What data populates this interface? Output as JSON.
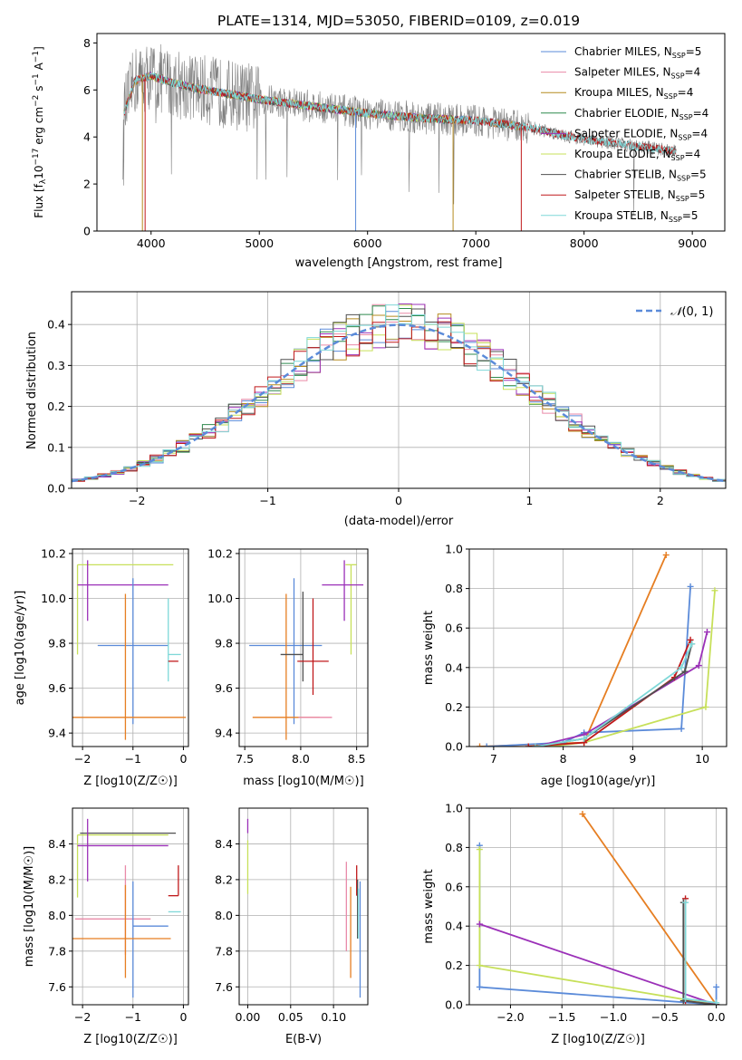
{
  "colors": {
    "Chabrier MILES": "#5b8bd9",
    "Salpeter MILES": "#e98aa8",
    "Kroupa MILES": "#b58b1f",
    "Chabrier ELODIE": "#2f8a4d",
    "Salpeter ELODIE": "#9b30b8",
    "Kroupa ELODIE": "#c7e05a",
    "Chabrier STELIB": "#505050",
    "Salpeter STELIB": "#c0191b",
    "Kroupa STELIB": "#7fd8d8",
    "extra_orange": "#e67e22",
    "observed": "#7f7f7f"
  },
  "chart_data": [
    {
      "id": "spectrum",
      "type": "line",
      "title": "PLATE=1314, MJD=53050, FIBERID=0109, z=0.019",
      "xlabel": "wavelength [Angstrom, rest frame]",
      "ylabel": "Flux [fλ10⁻¹⁷ erg cm⁻² s⁻¹ A⁻¹]",
      "xlim": [
        3500,
        9300
      ],
      "ylim": [
        0,
        8.4
      ],
      "xticks": [
        4000,
        5000,
        6000,
        7000,
        8000,
        9000
      ],
      "yticks": [
        0,
        2,
        4,
        6,
        8
      ],
      "legend": [
        {
          "name": "Chabrier MILES",
          "base": "Chabrier MILES, N",
          "sub": "SSP",
          "val": "=5"
        },
        {
          "name": "Salpeter MILES",
          "base": "Salpeter MILES, N",
          "sub": "SSP",
          "val": "=4"
        },
        {
          "name": "Kroupa MILES",
          "base": "Kroupa MILES, N",
          "sub": "SSP",
          "val": "=4"
        },
        {
          "name": "Chabrier ELODIE",
          "base": "Chabrier ELODIE, N",
          "sub": "SSP",
          "val": "=4"
        },
        {
          "name": "Salpeter ELODIE",
          "base": "Salpeter ELODIE, N",
          "sub": "SSP",
          "val": "=4"
        },
        {
          "name": "Kroupa ELODIE",
          "base": "Kroupa ELODIE, N",
          "sub": "SSP",
          "val": "=4"
        },
        {
          "name": "Chabrier STELIB",
          "base": "Chabrier STELIB, N",
          "sub": "SSP",
          "val": "=5"
        },
        {
          "name": "Salpeter STELIB",
          "base": "Salpeter STELIB, N",
          "sub": "SSP",
          "val": "=5"
        },
        {
          "name": "Kroupa STELIB",
          "base": "Kroupa STELIB, N",
          "sub": "SSP",
          "val": "=5"
        }
      ],
      "continuum": [
        [
          3750,
          5.0
        ],
        [
          3850,
          6.4
        ],
        [
          4000,
          6.6
        ],
        [
          4200,
          6.3
        ],
        [
          4500,
          6.0
        ],
        [
          5000,
          5.6
        ],
        [
          5500,
          5.3
        ],
        [
          6000,
          5.0
        ],
        [
          6500,
          4.8
        ],
        [
          7000,
          4.7
        ],
        [
          7500,
          4.4
        ],
        [
          8000,
          3.9
        ],
        [
          8500,
          3.6
        ],
        [
          8850,
          3.4
        ]
      ],
      "model_drops": [
        [
          3920,
          "#b58b1f"
        ],
        [
          3945,
          "#c0191b"
        ],
        [
          5890,
          "#5b8bd9"
        ],
        [
          6790,
          "#b58b1f"
        ],
        [
          7420,
          "#c0191b"
        ]
      ]
    },
    {
      "id": "residuals",
      "type": "bar",
      "xlabel": "(data-model)/error",
      "ylabel": "Normed distribution",
      "xlim": [
        -2.5,
        2.5
      ],
      "ylim": [
        0,
        0.48
      ],
      "xticks": [
        -2,
        -1,
        0,
        1,
        2
      ],
      "yticks": [
        0.0,
        0.1,
        0.2,
        0.3,
        0.4
      ],
      "legend": "N(0,1)",
      "bin_width": 0.1
    },
    {
      "id": "age_vs_Z",
      "type": "scatter",
      "xlabel": "Z [log10(Z/Z☉)]",
      "ylabel": "age  [log10(age/yr)]",
      "xlim": [
        -2.2,
        0.1
      ],
      "ylim": [
        9.34,
        10.22
      ],
      "xticks": [
        -2,
        -1,
        0
      ],
      "yticks": [
        9.4,
        9.6,
        9.8,
        10.0,
        10.2
      ],
      "points": [
        {
          "color": "#c7e05a",
          "x": -2.1,
          "y": 10.15,
          "xerr": [
            0.0,
            1.9
          ],
          "yerr": [
            0.4,
            0.0
          ]
        },
        {
          "color": "#9b30b8",
          "x": -1.9,
          "y": 10.06,
          "xerr": [
            0.2,
            1.6
          ],
          "yerr": [
            0.16,
            0.11
          ]
        },
        {
          "color": "#5b8bd9",
          "x": -1.0,
          "y": 9.79,
          "xerr": [
            0.7,
            0.7
          ],
          "yerr": [
            0.35,
            0.3
          ]
        },
        {
          "color": "#e67e22",
          "x": -1.15,
          "y": 9.47,
          "xerr": [
            1.1,
            1.2
          ],
          "yerr": [
            0.1,
            0.55
          ]
        },
        {
          "color": "#7fd8d8",
          "x": -0.3,
          "y": 9.75,
          "xerr": [
            0.0,
            0.25
          ],
          "yerr": [
            0.12,
            0.25
          ]
        },
        {
          "color": "#c0191b",
          "x": -0.1,
          "y": 9.72,
          "xerr": [
            0.2,
            0.0
          ],
          "yerr": [
            0.0,
            0.0
          ]
        }
      ]
    },
    {
      "id": "age_vs_mass",
      "type": "scatter",
      "xlabel": "mass [log10(M/M☉)]",
      "ylabel": "",
      "xlim": [
        7.45,
        8.6
      ],
      "ylim": [
        9.34,
        10.22
      ],
      "xticks": [
        7.5,
        8.0,
        8.5
      ],
      "yticks": [
        9.4,
        9.6,
        9.8,
        10.0,
        10.2
      ],
      "points": [
        {
          "color": "#c7e05a",
          "x": 8.45,
          "y": 10.15,
          "xerr": [
            0.05,
            0.05
          ],
          "yerr": [
            0.4,
            0.0
          ]
        },
        {
          "color": "#9b30b8",
          "x": 8.39,
          "y": 10.06,
          "xerr": [
            0.2,
            0.17
          ],
          "yerr": [
            0.16,
            0.11
          ]
        },
        {
          "color": "#5b8bd9",
          "x": 7.94,
          "y": 9.79,
          "xerr": [
            0.4,
            0.25
          ],
          "yerr": [
            0.35,
            0.3
          ]
        },
        {
          "color": "#e67e22",
          "x": 7.87,
          "y": 9.47,
          "xerr": [
            0.3,
            0.3
          ],
          "yerr": [
            0.1,
            0.55
          ]
        },
        {
          "color": "#e98aa8",
          "x": 7.98,
          "y": 9.47,
          "xerr": [
            0.0,
            0.3
          ],
          "yerr": [
            0.0,
            0.0
          ]
        },
        {
          "color": "#505050",
          "x": 8.02,
          "y": 9.75,
          "xerr": [
            0.2,
            0.0
          ],
          "yerr": [
            0.12,
            0.28
          ]
        },
        {
          "color": "#c0191b",
          "x": 8.11,
          "y": 9.72,
          "xerr": [
            0.14,
            0.14
          ],
          "yerr": [
            0.15,
            0.28
          ]
        }
      ]
    },
    {
      "id": "mass_weight_vs_age",
      "type": "line",
      "xlabel": "age  [log10(age/yr)]",
      "ylabel": "mass weight",
      "xlim": [
        6.65,
        10.35
      ],
      "ylim": [
        0,
        1.0
      ],
      "xticks": [
        7,
        8,
        9,
        10
      ],
      "yticks": [
        0.0,
        0.2,
        0.4,
        0.6,
        0.8,
        1.0
      ],
      "series": [
        {
          "color": "#e67e22",
          "points": [
            [
              6.8,
              0.0
            ],
            [
              8.3,
              0.02
            ],
            [
              9.48,
              0.97
            ]
          ]
        },
        {
          "color": "#5b8bd9",
          "points": [
            [
              6.9,
              0.0
            ],
            [
              8.0,
              0.02
            ],
            [
              8.3,
              0.07
            ],
            [
              9.7,
              0.09
            ],
            [
              9.83,
              0.81
            ]
          ]
        },
        {
          "color": "#c7e05a",
          "points": [
            [
              7.8,
              0.0
            ],
            [
              8.3,
              0.02
            ],
            [
              10.05,
              0.2
            ],
            [
              10.18,
              0.79
            ]
          ]
        },
        {
          "color": "#9b30b8",
          "points": [
            [
              7.6,
              0.0
            ],
            [
              8.3,
              0.06
            ],
            [
              9.95,
              0.41
            ],
            [
              10.07,
              0.58
            ]
          ]
        },
        {
          "color": "#c0191b",
          "points": [
            [
              7.5,
              0.0
            ],
            [
              8.3,
              0.02
            ],
            [
              9.6,
              0.35
            ],
            [
              9.83,
              0.54
            ]
          ]
        },
        {
          "color": "#505050",
          "points": [
            [
              7.6,
              0.0
            ],
            [
              8.3,
              0.04
            ],
            [
              9.75,
              0.38
            ],
            [
              9.85,
              0.52
            ]
          ]
        },
        {
          "color": "#7fd8d8",
          "points": [
            [
              7.6,
              0.0
            ],
            [
              8.3,
              0.04
            ],
            [
              9.7,
              0.4
            ],
            [
              9.85,
              0.52
            ]
          ]
        }
      ]
    },
    {
      "id": "mass_vs_Z",
      "type": "scatter",
      "xlabel": "Z [log10(Z/Z☉)]",
      "ylabel": "mass [log10(M/M☉)]",
      "xlim": [
        -2.2,
        0.1
      ],
      "ylim": [
        7.5,
        8.6
      ],
      "xticks": [
        -2,
        -1,
        0
      ],
      "yticks": [
        7.6,
        7.8,
        8.0,
        8.2,
        8.4
      ],
      "points": [
        {
          "color": "#505050",
          "x": -2.05,
          "y": 8.46,
          "xerr": [
            0.0,
            1.9
          ],
          "yerr": [
            0.0,
            0.0
          ]
        },
        {
          "color": "#c7e05a",
          "x": -2.1,
          "y": 8.45,
          "xerr": [
            0.0,
            1.8
          ],
          "yerr": [
            0.35,
            0.0
          ]
        },
        {
          "color": "#9b30b8",
          "x": -1.9,
          "y": 8.39,
          "xerr": [
            0.2,
            1.6
          ],
          "yerr": [
            0.2,
            0.15
          ]
        },
        {
          "color": "#e98aa8",
          "x": -1.15,
          "y": 7.98,
          "xerr": [
            1.0,
            0.5
          ],
          "yerr": [
            0.2,
            0.3
          ]
        },
        {
          "color": "#5b8bd9",
          "x": -1.0,
          "y": 7.94,
          "xerr": [
            0.0,
            0.7
          ],
          "yerr": [
            0.4,
            0.25
          ]
        },
        {
          "color": "#e67e22",
          "x": -1.15,
          "y": 7.87,
          "xerr": [
            1.1,
            0.9
          ],
          "yerr": [
            0.22,
            0.3
          ]
        },
        {
          "color": "#7fd8d8",
          "x": -0.3,
          "y": 8.02,
          "xerr": [
            0.0,
            0.25
          ],
          "yerr": [
            0.0,
            0.0
          ]
        },
        {
          "color": "#c0191b",
          "x": -0.1,
          "y": 8.11,
          "xerr": [
            0.2,
            0.0
          ],
          "yerr": [
            0.0,
            0.17
          ]
        }
      ]
    },
    {
      "id": "mass_vs_ebv",
      "type": "scatter",
      "xlabel": "E(B-V)",
      "ylabel": "",
      "xlim": [
        -0.01,
        0.14
      ],
      "ylim": [
        7.5,
        8.6
      ],
      "xticks": [
        0.0,
        0.05,
        0.1
      ],
      "yticks": [
        7.6,
        7.8,
        8.0,
        8.2,
        8.4
      ],
      "points": [
        {
          "color": "#9b30b8",
          "x": 0.0,
          "y": 8.46,
          "xerr": [
            0.0,
            0.0
          ],
          "yerr": [
            0.0,
            0.08
          ]
        },
        {
          "color": "#c7e05a",
          "x": 0.0,
          "y": 8.42,
          "xerr": [
            0.0,
            0.0
          ],
          "yerr": [
            0.3,
            0.0
          ]
        },
        {
          "color": "#e98aa8",
          "x": 0.115,
          "y": 8.0,
          "xerr": [
            0.0,
            0.0
          ],
          "yerr": [
            0.2,
            0.3
          ]
        },
        {
          "color": "#e67e22",
          "x": 0.12,
          "y": 7.9,
          "xerr": [
            0.0,
            0.0
          ],
          "yerr": [
            0.25,
            0.26
          ]
        },
        {
          "color": "#c0191b",
          "x": 0.127,
          "y": 8.11,
          "xerr": [
            0.0,
            0.0
          ],
          "yerr": [
            0.0,
            0.17
          ]
        },
        {
          "color": "#505050",
          "x": 0.128,
          "y": 8.03,
          "xerr": [
            0.0,
            0.0
          ],
          "yerr": [
            0.16,
            0.17
          ]
        },
        {
          "color": "#7fd8d8",
          "x": 0.129,
          "y": 8.0,
          "xerr": [
            0.0,
            0.0
          ],
          "yerr": [
            0.13,
            0.15
          ]
        },
        {
          "color": "#5b8bd9",
          "x": 0.131,
          "y": 7.94,
          "xerr": [
            0.0,
            0.0
          ],
          "yerr": [
            0.4,
            0.25
          ]
        }
      ]
    },
    {
      "id": "mass_weight_vs_Z",
      "type": "line",
      "xlabel": "Z [log10(Z/Z☉)]",
      "ylabel": "mass weight",
      "xlim": [
        -2.4,
        0.1
      ],
      "ylim": [
        0,
        1.0
      ],
      "xticks": [
        -2.0,
        -1.5,
        -1.0,
        -0.5,
        0.0
      ],
      "yticks": [
        0.0,
        0.2,
        0.4,
        0.6,
        0.8,
        1.0
      ],
      "series": [
        {
          "color": "#e67e22",
          "points": [
            [
              -1.3,
              0.97
            ],
            [
              0.0,
              0.0
            ]
          ]
        },
        {
          "color": "#5b8bd9",
          "points": [
            [
              -2.3,
              0.81
            ],
            [
              -2.3,
              0.09
            ],
            [
              0.0,
              0.0
            ],
            [
              0.0,
              0.09
            ]
          ]
        },
        {
          "color": "#c7e05a",
          "points": [
            [
              -2.3,
              0.79
            ],
            [
              -2.3,
              0.2
            ],
            [
              0.0,
              0.0
            ]
          ]
        },
        {
          "color": "#9b30b8",
          "points": [
            [
              -2.3,
              0.41
            ],
            [
              0.0,
              0.0
            ]
          ]
        },
        {
          "color": "#c0191b",
          "points": [
            [
              -0.3,
              0.54
            ],
            [
              -0.3,
              0.02
            ],
            [
              0.0,
              0.0
            ]
          ]
        },
        {
          "color": "#505050",
          "points": [
            [
              -0.32,
              0.52
            ],
            [
              -0.32,
              0.02
            ],
            [
              0.0,
              0.0
            ]
          ]
        },
        {
          "color": "#7fd8d8",
          "points": [
            [
              -0.3,
              0.52
            ],
            [
              -0.3,
              0.03
            ],
            [
              0.0,
              0.01
            ]
          ]
        }
      ]
    }
  ]
}
